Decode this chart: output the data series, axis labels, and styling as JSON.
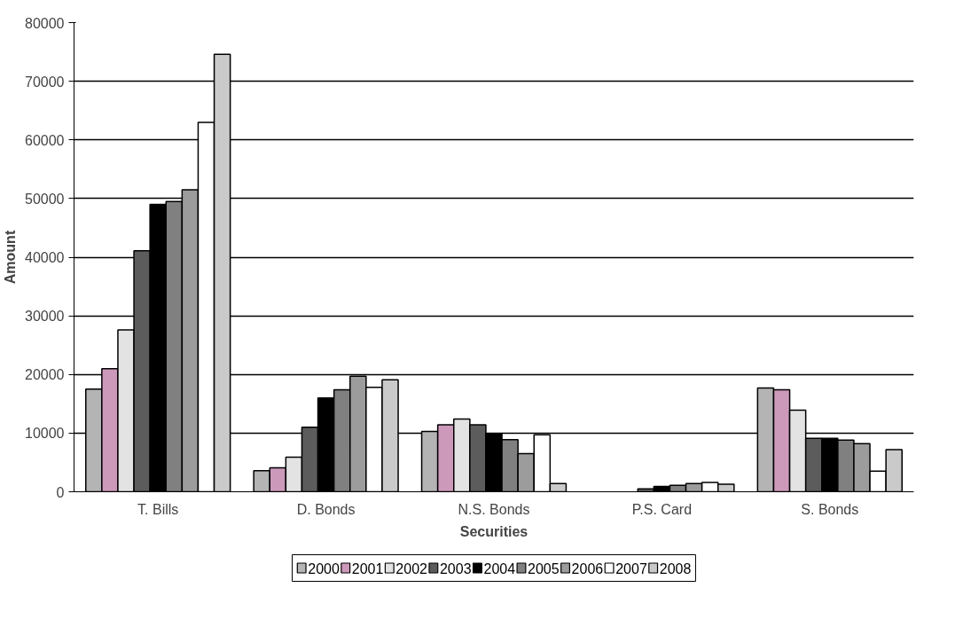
{
  "chart_data": {
    "type": "bar",
    "xlabel": "Securities",
    "ylabel": "Amount",
    "categories": [
      "T. Bills",
      "D. Bonds",
      "N.S. Bonds",
      "P.S. Card",
      "S. Bonds"
    ],
    "series": [
      {
        "name": "2000",
        "color": "#b4b4b4",
        "values": [
          17500,
          3600,
          10300,
          null,
          17700
        ]
      },
      {
        "name": "2001",
        "color": "#cc99bb",
        "values": [
          21000,
          4100,
          11400,
          null,
          17400
        ]
      },
      {
        "name": "2002",
        "color": "#e3e3e3",
        "values": [
          27600,
          5900,
          12400,
          null,
          13900
        ]
      },
      {
        "name": "2003",
        "color": "#5c5c5c",
        "values": [
          41100,
          11000,
          11400,
          500,
          9100
        ]
      },
      {
        "name": "2004",
        "color": "#000000",
        "values": [
          49000,
          16000,
          9900,
          900,
          9100
        ]
      },
      {
        "name": "2005",
        "color": "#808080",
        "values": [
          49500,
          17400,
          8900,
          1100,
          8800
        ]
      },
      {
        "name": "2006",
        "color": "#9c9c9c",
        "values": [
          51500,
          19700,
          6500,
          1400,
          8200
        ]
      },
      {
        "name": "2007",
        "color": "#ffffff",
        "values": [
          63000,
          17800,
          9700,
          1600,
          3500
        ]
      },
      {
        "name": "2008",
        "color": "#cacaca",
        "values": [
          74600,
          19100,
          1400,
          1300,
          7200
        ]
      }
    ],
    "ylim": [
      0,
      80000
    ],
    "yticks": [
      0,
      10000,
      20000,
      30000,
      40000,
      50000,
      60000,
      70000,
      80000
    ],
    "grid": "y",
    "legend": "bottom"
  }
}
